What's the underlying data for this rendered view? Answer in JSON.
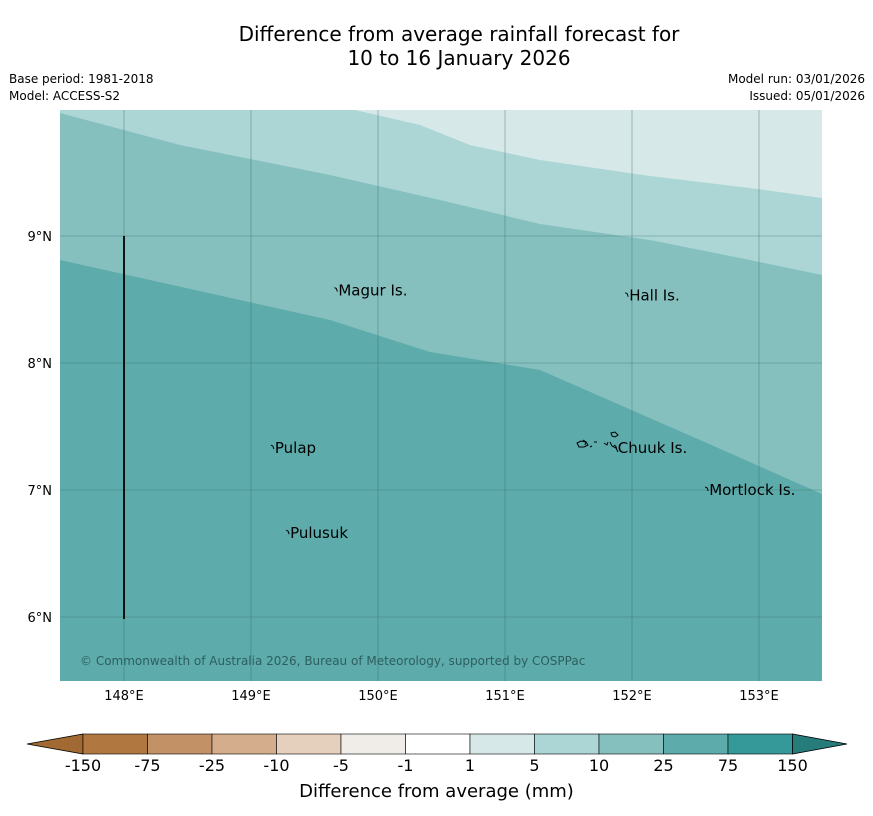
{
  "header": {
    "title_line1": "Difference from average rainfall forecast for",
    "title_line2": "10 to 16 January 2026",
    "base_period": "Base period: 1981-2018",
    "model": "Model: ACCESS-S2",
    "model_run": "Model run: 03/01/2026",
    "issued": "Issued: 05/01/2026"
  },
  "map": {
    "lon_range": [
      147.5,
      153.5
    ],
    "lat_range": [
      5.5,
      10.0
    ],
    "lon_ticks": [
      148,
      149,
      150,
      151,
      152,
      153
    ],
    "lon_labels": [
      "148°E",
      "149°E",
      "150°E",
      "151°E",
      "152°E",
      "153°E"
    ],
    "lat_ticks": [
      6,
      7,
      8,
      9
    ],
    "lat_labels": [
      "6°N",
      "7°N",
      "8°N",
      "9°N"
    ],
    "islands": [
      {
        "name": "Magur Is.",
        "lon": 149.68,
        "lat": 8.57
      },
      {
        "name": "Hall Is.",
        "lon": 151.97,
        "lat": 8.53
      },
      {
        "name": "Pulap",
        "lon": 149.18,
        "lat": 7.33
      },
      {
        "name": "Chuuk Is.",
        "lon": 151.88,
        "lat": 7.33
      },
      {
        "name": "Mortlock Is.",
        "lon": 152.6,
        "lat": 7.0
      },
      {
        "name": "Pulusuk",
        "lon": 149.3,
        "lat": 6.66
      }
    ],
    "copyright": "© Commonwealth of Australia 2026, Bureau of Meteorology, supported by COSPPac",
    "zones": [
      {
        "range": "1 to 5",
        "color": "#d6e9e8"
      },
      {
        "range": "5 to 10",
        "color": "#acd6d5"
      },
      {
        "range": "10 to 25",
        "color": "#85c0bf"
      },
      {
        "range": "25 to 75",
        "color": "#5dabab"
      }
    ]
  },
  "colorbar": {
    "title": "Difference from average (mm)",
    "labels": [
      "-150",
      "-75",
      "-25",
      "-10",
      "-5",
      "-1",
      "1",
      "5",
      "10",
      "25",
      "75",
      "150"
    ],
    "colors": [
      "#b07840",
      "#c29166",
      "#d4ae8c",
      "#e4d0bd",
      "#f0ede8",
      "#ffffff",
      "#d6e9e8",
      "#acd6d5",
      "#85c0bf",
      "#5dabab",
      "#35999a"
    ],
    "under_color": "#a16a32",
    "over_color": "#267b7b"
  }
}
